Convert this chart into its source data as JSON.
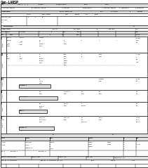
{
  "title": "Can-LARSP",
  "bg": "#ffffff",
  "gray1": "#c8c8c8",
  "gray2": "#e0e0e0",
  "black": "#000000"
}
